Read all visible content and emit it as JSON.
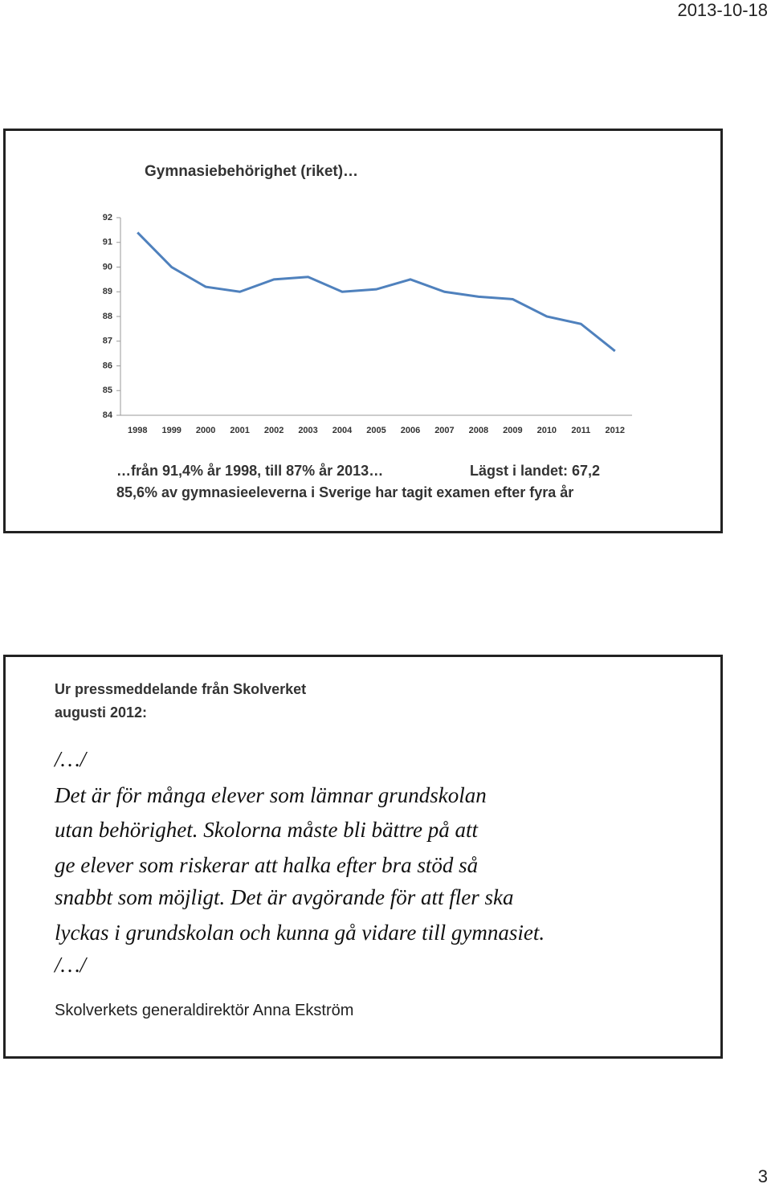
{
  "header": {
    "date": "2013-10-18"
  },
  "slide1": {
    "chart_data": {
      "type": "line",
      "title": "Gymnasiebehörighet (riket)…",
      "categories": [
        "1998",
        "1999",
        "2000",
        "2001",
        "2002",
        "2003",
        "2004",
        "2005",
        "2006",
        "2007",
        "2008",
        "2009",
        "2010",
        "2011",
        "2012"
      ],
      "values": [
        91.4,
        90.0,
        89.2,
        89.0,
        89.5,
        89.6,
        89.0,
        89.1,
        89.5,
        89.0,
        88.8,
        88.7,
        88.0,
        87.7,
        86.6
      ],
      "color": "#4f81bd",
      "ylim": [
        84,
        92
      ],
      "yticks": [
        84,
        85,
        86,
        87,
        88,
        89,
        90,
        91,
        92
      ],
      "grid": false
    },
    "caption_left": "…från 91,4% år 1998, till 87% år 2013…",
    "caption_right": "Lägst i landet: 67,2",
    "caption_line2": "85,6% av gymnasieeleverna i Sverige har tagit examen efter fyra år"
  },
  "slide2": {
    "heading": [
      "Ur pressmeddelande från Skolverket",
      "augusti 2012:"
    ],
    "quote": [
      "/…/",
      "Det är för många elever som lämnar grundskolan",
      "utan behörighet. Skolorna måste bli bättre på att",
      "ge elever som riskerar att halka efter bra stöd så",
      "snabbt som möjligt. Det är avgörande för att fler ska",
      "lyckas i grundskolan och kunna gå vidare till gymnasiet.",
      "/…/"
    ],
    "signature": "Skolverkets generaldirektör Anna Ekström"
  },
  "footer": {
    "page": "3"
  }
}
